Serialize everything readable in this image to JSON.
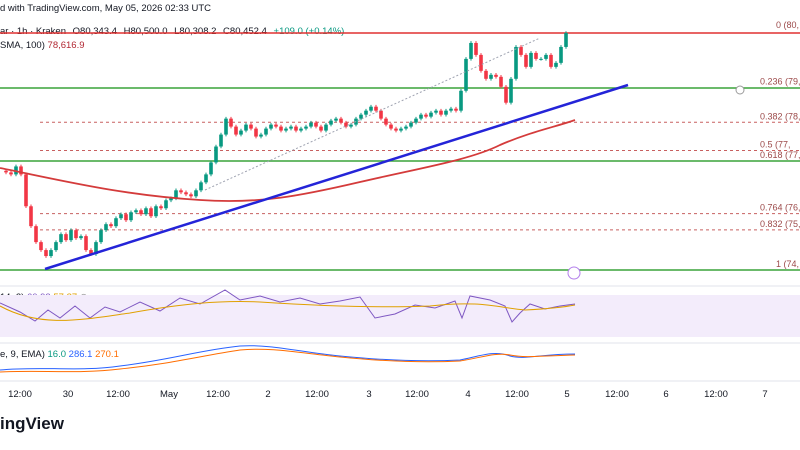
{
  "header": {
    "published": "d with TradingView.com, May 05, 2026 02:33 UTC",
    "pair": "ar · 1h · Kraken",
    "open": "O80,343.4",
    "high": "H80,500.0",
    "low": "L80,308.2",
    "close": "C80,452.4",
    "change": "+109.0 (+0.14%)",
    "sma_label": "SMA, 100)",
    "sma_value": "78,616.9"
  },
  "indicators": {
    "rsi_label": "14, 2)",
    "rsi_value1": "60.93",
    "rsi_value2": "57.87",
    "macd_label": "e, 9, EMA)",
    "macd_v1": "16.0",
    "macd_v2": "286.1",
    "macd_v3": "270.1"
  },
  "brand": "ingView",
  "colors": {
    "up": "#089981",
    "down": "#f23645",
    "trend": "#2424d8",
    "sma": "#d43b3b",
    "resistance": "#e03030",
    "support": "#3aa33a",
    "fib": "#c86060",
    "rsi_band": "#f3ecfb"
  },
  "chart_data": {
    "type": "candlestick",
    "title": "",
    "xlabel": "",
    "ylabel": "",
    "x_ticks": [
      "12:00",
      "30",
      "12:00",
      "May",
      "12:00",
      "2",
      "12:00",
      "3",
      "12:00",
      "4",
      "12:00",
      "5",
      "12:00",
      "6",
      "12:00",
      "7"
    ],
    "fib_levels": [
      {
        "ratio": 0,
        "label": "0 (80,"
      },
      {
        "ratio": 0.236,
        "label": "0.236 (79,"
      },
      {
        "ratio": 0.382,
        "label": "0.382 (78,"
      },
      {
        "ratio": 0.5,
        "label": "0.5 (77,"
      },
      {
        "ratio": 0.618,
        "label": "0.618 (77,"
      },
      {
        "ratio": 0.764,
        "label": "0.764 (76,"
      },
      {
        "ratio": 0.832,
        "label": "0.832 (75,"
      },
      {
        "ratio": 1,
        "label": "1 (74,"
      }
    ],
    "price_min": 74500,
    "price_max": 80500,
    "candles_close": [
      76950,
      76900,
      77100,
      76900,
      76100,
      75600,
      75200,
      75000,
      74850,
      75000,
      75200,
      75400,
      75250,
      75500,
      75300,
      75350,
      75000,
      74900,
      75200,
      75500,
      75650,
      75600,
      75800,
      75900,
      75750,
      75950,
      76000,
      75900,
      76050,
      75850,
      76100,
      76050,
      76250,
      76300,
      76500,
      76450,
      76400,
      76350,
      76500,
      76700,
      76900,
      77200,
      77600,
      77900,
      78300,
      78100,
      77900,
      78000,
      78150,
      78050,
      77850,
      77900,
      78050,
      78150,
      78100,
      78000,
      78050,
      78100,
      78000,
      78050,
      78100,
      78200,
      78100,
      78000,
      78150,
      78250,
      78300,
      78200,
      78100,
      78150,
      78300,
      78400,
      78500,
      78600,
      78500,
      78300,
      78150,
      78050,
      78000,
      78050,
      78100,
      78200,
      78300,
      78400,
      78350,
      78450,
      78500,
      78400,
      78500,
      78550,
      78500,
      79000,
      79800,
      80200,
      79900,
      79500,
      79300,
      79400,
      79350,
      79100,
      78700,
      79300,
      80100,
      79900,
      79600,
      79950,
      79800,
      79800,
      79900,
      79600,
      79700,
      80100,
      80450
    ]
  }
}
